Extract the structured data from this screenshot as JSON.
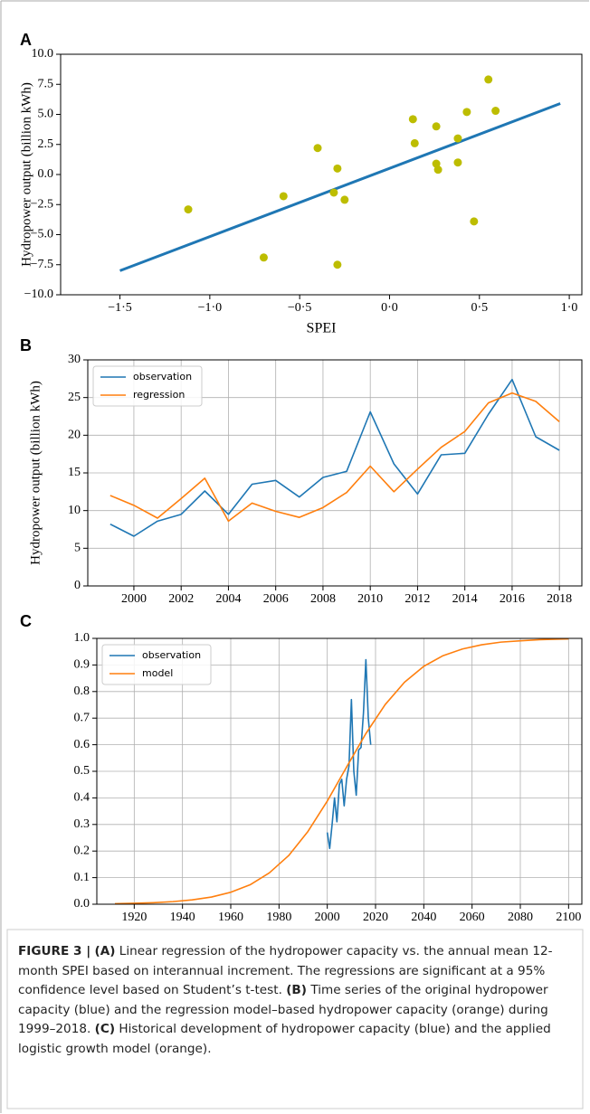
{
  "chart_data": [
    {
      "type": "scatter",
      "panel": "A",
      "xlabel": "SPEI",
      "ylabel": "Hydropower output (billion kWh)",
      "points": {
        "color": "#bdbd00",
        "x": [
          -1.12,
          -0.7,
          -0.59,
          -0.4,
          -0.31,
          -0.29,
          -0.29,
          -0.25,
          0.13,
          0.14,
          0.26,
          0.26,
          0.27,
          0.38,
          0.38,
          0.43,
          0.47,
          0.55,
          0.59
        ],
        "values": [
          -2.9,
          -6.9,
          -1.8,
          2.2,
          -1.5,
          0.5,
          -7.5,
          -2.1,
          4.6,
          2.6,
          4.0,
          0.9,
          0.4,
          3.0,
          1.0,
          5.2,
          -3.9,
          7.9,
          5.3
        ]
      },
      "fit": {
        "color": "#1f77b4",
        "x": [
          -1.5,
          0.95
        ],
        "values": [
          -8.0,
          5.9
        ]
      },
      "xlim": [
        -1.83,
        1.07
      ],
      "ylim": [
        -10,
        10
      ],
      "xticks": [
        {
          "value": -1.5,
          "label": "−1·5"
        },
        {
          "value": -1.0,
          "label": "−1·0"
        },
        {
          "value": -0.5,
          "label": "−0·5"
        },
        {
          "value": 0,
          "label": "0·0"
        },
        {
          "value": 0.5,
          "label": "0·5"
        },
        {
          "value": 1.0,
          "label": "1·0"
        }
      ],
      "yticks": [
        {
          "value": -10,
          "label": "−10.0"
        },
        {
          "value": -7.5,
          "label": "−7.5"
        },
        {
          "value": -5,
          "label": "−5.0"
        },
        {
          "value": -2.5,
          "label": "−2.5"
        },
        {
          "value": 0,
          "label": "0.0"
        },
        2.5,
        {
          "value": 5,
          "label": "5.0"
        },
        7.5,
        {
          "value": 10,
          "label": "10.0"
        }
      ],
      "grid": false
    },
    {
      "type": "line",
      "panel": "B",
      "ylabel": "Hydropower output (billion kWh)",
      "legend": "upper left",
      "series": [
        {
          "name": "observation",
          "color": "#1f77b4",
          "x": [
            1999,
            2000,
            2001,
            2002,
            2003,
            2004,
            2005,
            2006,
            2007,
            2008,
            2009,
            2010,
            2011,
            2012,
            2013,
            2014,
            2015,
            2016,
            2017,
            2018
          ],
          "values": [
            8.2,
            6.6,
            8.6,
            9.5,
            12.6,
            9.5,
            13.5,
            14.0,
            11.8,
            14.4,
            15.2,
            23.1,
            16.2,
            12.2,
            17.4,
            17.6,
            22.8,
            27.4,
            19.8,
            18.0
          ]
        },
        {
          "name": "regression",
          "color": "#ff7f0e",
          "x": [
            1999,
            2000,
            2001,
            2002,
            2003,
            2004,
            2005,
            2006,
            2007,
            2008,
            2009,
            2010,
            2011,
            2012,
            2013,
            2014,
            2015,
            2016,
            2017,
            2018
          ],
          "values": [
            12.0,
            10.7,
            9.0,
            11.6,
            14.3,
            8.6,
            11.0,
            9.9,
            9.1,
            10.4,
            12.4,
            15.9,
            12.5,
            15.5,
            18.4,
            20.5,
            24.3,
            25.6,
            24.5,
            21.8
          ]
        }
      ],
      "xlim": [
        1998.05,
        2018.95
      ],
      "ylim": [
        0,
        30
      ],
      "xticks": [
        2000,
        2002,
        2004,
        2006,
        2008,
        2010,
        2012,
        2014,
        2016,
        2018
      ],
      "yticks": [
        0,
        5,
        10,
        15,
        20,
        25,
        30
      ],
      "grid": true
    },
    {
      "type": "line",
      "panel": "C",
      "legend": "upper left",
      "series": [
        {
          "name": "observation",
          "color": "#1f77b4",
          "x": [
            2000,
            2001,
            2002,
            2003,
            2004,
            2005,
            2006,
            2007,
            2008,
            2009,
            2010,
            2011,
            2012,
            2013,
            2014,
            2015,
            2016,
            2017,
            2018
          ],
          "values": [
            0.27,
            0.21,
            0.3,
            0.4,
            0.31,
            0.45,
            0.47,
            0.37,
            0.47,
            0.52,
            0.77,
            0.5,
            0.41,
            0.58,
            0.59,
            0.72,
            0.92,
            0.7,
            0.6
          ]
        },
        {
          "name": "model",
          "color": "#ff7f0e",
          "x": [
            1912,
            1920,
            1928,
            1936,
            1944,
            1952,
            1960,
            1968,
            1976,
            1984,
            1992,
            2000,
            2008,
            2016,
            2024,
            2032,
            2040,
            2048,
            2056,
            2064,
            2072,
            2080,
            2088,
            2096,
            2100
          ],
          "values": [
            0.0021,
            0.0035,
            0.0059,
            0.0098,
            0.0164,
            0.027,
            0.045,
            0.073,
            0.118,
            0.183,
            0.274,
            0.388,
            0.516,
            0.642,
            0.751,
            0.835,
            0.895,
            0.935,
            0.96,
            0.976,
            0.986,
            0.991,
            0.995,
            0.997,
            0.998
          ]
        }
      ],
      "xlim": [
        1904.5,
        2105.5
      ],
      "ylim": [
        0,
        1
      ],
      "xticks": [
        1920,
        1940,
        1960,
        1980,
        2000,
        2020,
        2040,
        2060,
        2080,
        2100
      ],
      "yticks": [
        {
          "value": 0,
          "label": "0.0"
        },
        0.1,
        0.2,
        0.3,
        0.4,
        0.5,
        0.6,
        0.7,
        0.8,
        0.9,
        {
          "value": 1,
          "label": "1.0"
        }
      ],
      "grid": true
    }
  ],
  "caption": {
    "figure": "FIGURE 3 |",
    "parts": [
      {
        "label": "(A)",
        "text": "Linear regression of the hydropower capacity vs. the annual mean 12-month SPEI based on interannual increment. The regressions are significant at a 95% confidence level based on Student’s t-test."
      },
      {
        "label": "(B)",
        "text": "Time series of the original hydropower capacity (blue) and the regression model–based hydropower capacity (orange) during 1999–2018."
      },
      {
        "label": "(C)",
        "text": "Historical development of hydropower capacity (blue) and the applied logistic growth model (orange)."
      }
    ]
  }
}
